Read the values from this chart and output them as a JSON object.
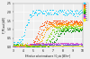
{
  "xlabel": "Effective solar irradiance / G_stc [W/m²]",
  "ylabel": "P_PV,out [kW]",
  "xlim": [
    3,
    10
  ],
  "ylim": [
    0,
    2.5
  ],
  "yticks": [
    0.0,
    0.5,
    1.0,
    1.5,
    2.0,
    2.5
  ],
  "xticks": [
    3,
    4,
    5,
    6,
    7,
    8,
    9,
    10
  ],
  "background_color": "#f0f0f0",
  "grid_color": "#ffffff",
  "series": [
    {
      "label": "1",
      "color": "#00CCFF",
      "k": 4.0,
      "x0": 4.2,
      "ymax": 2.0,
      "ymin": 0.05
    },
    {
      "label": "2",
      "color": "#FF4400",
      "k": 4.0,
      "x0": 5.5,
      "ymax": 1.45,
      "ymin": 0.05
    },
    {
      "label": "3",
      "color": "#FF7700",
      "k": 4.0,
      "x0": 5.8,
      "ymax": 1.35,
      "ymin": 0.05
    },
    {
      "label": "4",
      "color": "#FFAA00",
      "k": 4.0,
      "x0": 6.1,
      "ymax": 1.25,
      "ymin": 0.05
    },
    {
      "label": "5",
      "color": "#88DD00",
      "k": 4.0,
      "x0": 6.6,
      "ymax": 1.15,
      "ymin": 0.05
    },
    {
      "label": "6",
      "color": "#33BB00",
      "k": 4.0,
      "x0": 7.0,
      "ymax": 1.05,
      "ymin": 0.05
    },
    {
      "label": "7",
      "color": "#008800",
      "k": 4.0,
      "x0": 7.4,
      "ymax": 0.95,
      "ymin": 0.05
    },
    {
      "label": "8",
      "color": "#CC44CC",
      "k": 8.0,
      "x0": 4.5,
      "ymax": 0.2,
      "ymin": 0.05
    },
    {
      "label": "9",
      "color": "#4444FF",
      "k": 8.0,
      "x0": 4.5,
      "ymax": 0.1,
      "ymin": 0.05
    },
    {
      "label": "10",
      "color": "#FF44AA",
      "k": 8.0,
      "x0": 4.5,
      "ymax": 0.08,
      "ymin": 0.05
    },
    {
      "label": "11",
      "color": "#FFFF00",
      "k": 8.0,
      "x0": 4.5,
      "ymax": 0.06,
      "ymin": 0.05
    }
  ]
}
